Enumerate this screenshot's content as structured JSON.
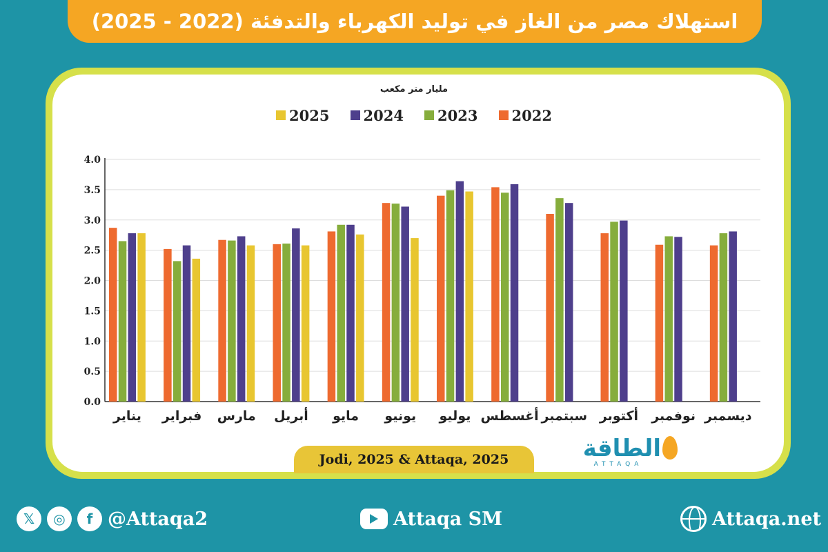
{
  "title": "استهلاك مصر من الغاز في توليد الكهرباء والتدفئة (2022 - 2025)",
  "source": "Jodi, 2025 & Attaqa, 2025",
  "brand": {
    "name": "الطاقة",
    "sub": "ATTAQA"
  },
  "footer": {
    "social_handle": "@Attaqa2",
    "youtube": "Attaqa SM",
    "website": "Attaqa.net"
  },
  "colors": {
    "background": "#1e94a6",
    "title_bar": "#f5a623",
    "frame": "#d6e04a"
  },
  "chart_data": {
    "type": "bar",
    "ylabel": "مليار متر مكعب",
    "ylim": [
      0,
      4.0
    ],
    "yticks": [
      "0.0",
      "0.5",
      "1.0",
      "1.5",
      "2.0",
      "2.5",
      "3.0",
      "3.5",
      "4.0"
    ],
    "grid": true,
    "legend_position": "top",
    "categories": [
      "يناير",
      "فبراير",
      "مارس",
      "أبريل",
      "مايو",
      "يونيو",
      "يوليو",
      "أغسطس",
      "سبتمبر",
      "أكتوبر",
      "نوفمبر",
      "ديسمبر"
    ],
    "series": [
      {
        "name": "2022",
        "color": "#ee6a2f",
        "values": [
          2.87,
          2.52,
          2.67,
          2.6,
          2.81,
          3.28,
          3.4,
          3.54,
          3.1,
          2.78,
          2.59,
          2.58
        ]
      },
      {
        "name": "2023",
        "color": "#86ad3c",
        "values": [
          2.65,
          2.32,
          2.66,
          2.61,
          2.92,
          3.27,
          3.49,
          3.45,
          3.36,
          2.97,
          2.73,
          2.78
        ]
      },
      {
        "name": "2024",
        "color": "#4e3f8c",
        "values": [
          2.78,
          2.58,
          2.73,
          2.86,
          2.92,
          3.22,
          3.64,
          3.59,
          3.28,
          2.99,
          2.72,
          2.81
        ]
      },
      {
        "name": "2025",
        "color": "#e8c630",
        "values": [
          2.78,
          2.36,
          2.58,
          2.58,
          2.76,
          2.7,
          3.47,
          null,
          null,
          null,
          null,
          null
        ]
      }
    ]
  }
}
